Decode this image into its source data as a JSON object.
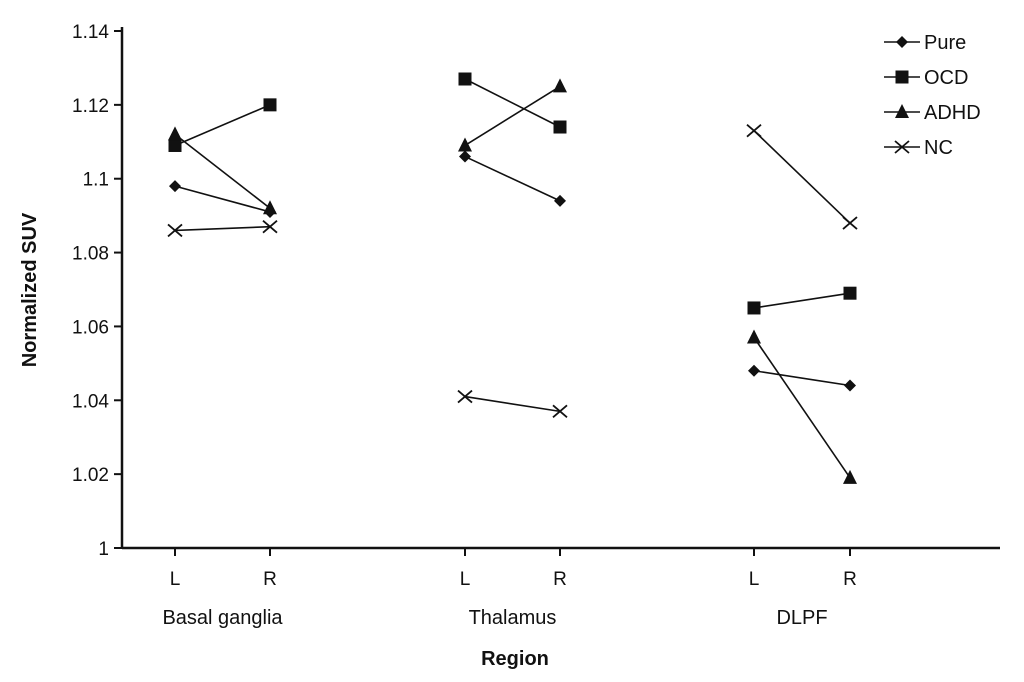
{
  "chart_data": {
    "type": "line",
    "title": "",
    "xlabel": "Region",
    "ylabel": "Normalized SUV",
    "ylim": [
      1,
      1.14
    ],
    "y_ticks": [
      "1",
      "1.02",
      "1.04",
      "1.06",
      "1.08",
      "1.1",
      "1.12",
      "1.14"
    ],
    "grid": false,
    "legend_position": "top-right",
    "groups": [
      {
        "name": "Basal ganglia",
        "sides": [
          "L",
          "R"
        ]
      },
      {
        "name": "Thalamus",
        "sides": [
          "L",
          "R"
        ]
      },
      {
        "name": "DLPF",
        "sides": [
          "L",
          "R"
        ]
      }
    ],
    "series": [
      {
        "name": "Pure",
        "marker": "diamond",
        "values": [
          [
            1.098,
            1.091
          ],
          [
            1.106,
            1.094
          ],
          [
            1.048,
            1.044
          ]
        ]
      },
      {
        "name": "OCD",
        "marker": "square",
        "values": [
          [
            1.109,
            1.12
          ],
          [
            1.127,
            1.114
          ],
          [
            1.065,
            1.069
          ]
        ]
      },
      {
        "name": "ADHD",
        "marker": "triangle",
        "values": [
          [
            1.112,
            1.092
          ],
          [
            1.109,
            1.125
          ],
          [
            1.057,
            1.019
          ]
        ]
      },
      {
        "name": "NC",
        "marker": "x",
        "values": [
          [
            1.086,
            1.087
          ],
          [
            1.041,
            1.037
          ],
          [
            1.113,
            1.088
          ]
        ]
      }
    ],
    "colors": {
      "line": "#111111",
      "background": "#ffffff"
    }
  }
}
